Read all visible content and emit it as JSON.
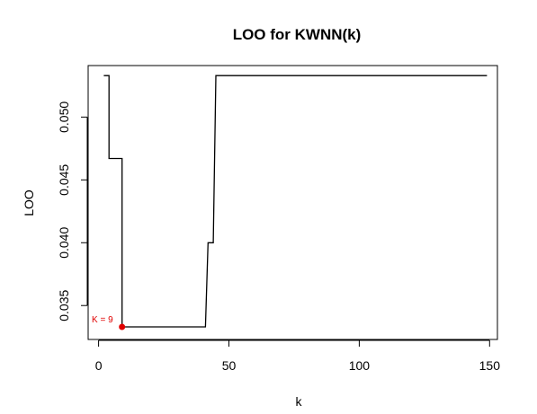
{
  "chart_data": {
    "type": "line",
    "title": "LOO for KWNN(k)",
    "xlabel": "k",
    "ylabel": "LOO",
    "xlim": [
      -4,
      153
    ],
    "ylim": [
      0.0323,
      0.0541
    ],
    "x_ticks": [
      0,
      50,
      100,
      150
    ],
    "y_ticks": [
      0.035,
      0.04,
      0.045,
      0.05
    ],
    "y_tick_labels": [
      "0.035",
      "0.040",
      "0.045",
      "0.050"
    ],
    "grid": false,
    "series": [
      {
        "color": "#000000",
        "points": [
          [
            2,
            0.0533
          ],
          [
            4,
            0.0533
          ],
          [
            4,
            0.0467
          ],
          [
            9,
            0.0467
          ],
          [
            9,
            0.0333
          ],
          [
            41,
            0.0333
          ],
          [
            42,
            0.04
          ],
          [
            44,
            0.04
          ],
          [
            45,
            0.0533
          ],
          [
            149,
            0.0533
          ]
        ]
      }
    ],
    "highlight": {
      "x": 9,
      "y": 0.0333,
      "color": "#e00000",
      "label": "K =  9"
    }
  }
}
